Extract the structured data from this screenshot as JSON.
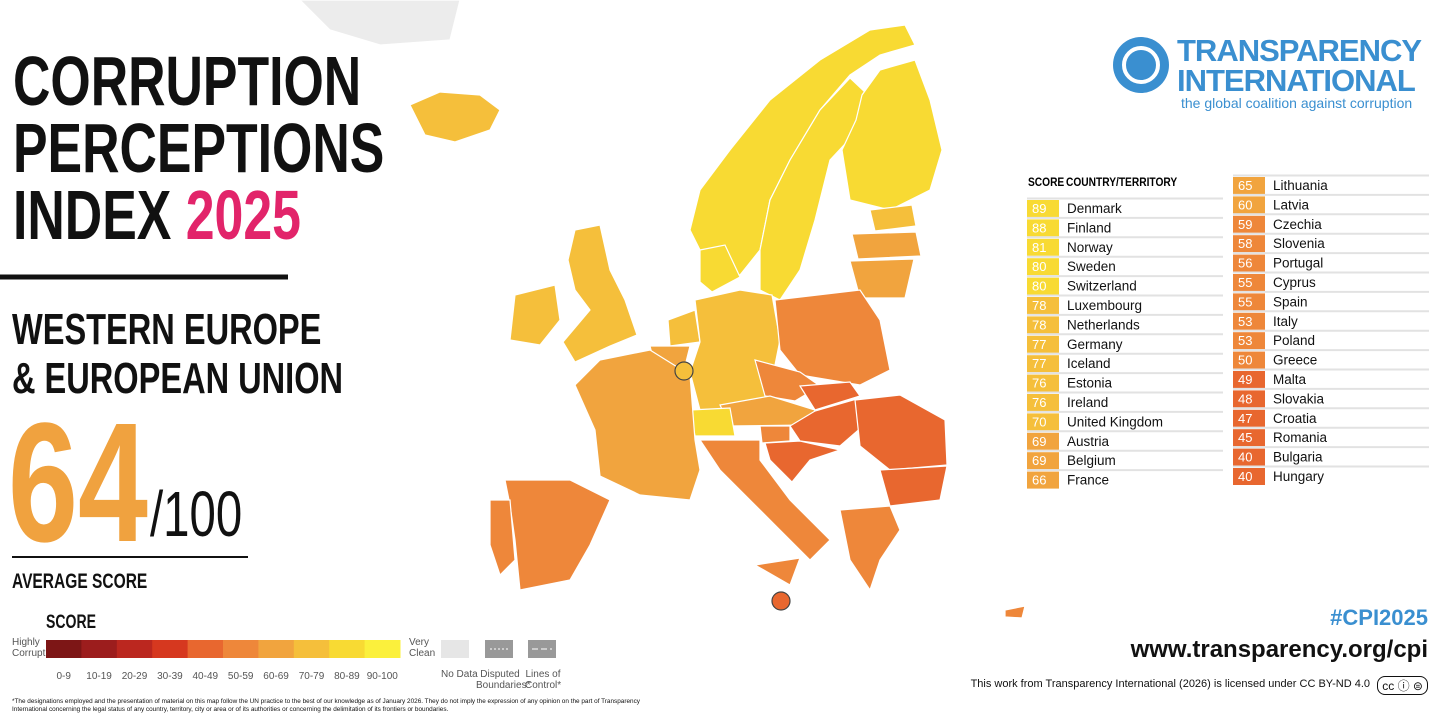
{
  "header": {
    "title_lines": [
      "CORRUPTION",
      "PERCEPTIONS",
      "INDEX"
    ],
    "year": "2025",
    "region_lines": [
      "WESTERN EUROPE",
      "& EUROPEAN UNION"
    ]
  },
  "average": {
    "score": 64,
    "out_of": "/100",
    "label": "AVERAGE SCORE"
  },
  "legend": {
    "title": "SCORE",
    "low_label": "Highly Corrupt",
    "high_label": "Very Clean",
    "bins": [
      "0-9",
      "10-19",
      "20-29",
      "30-39",
      "40-49",
      "50-59",
      "60-69",
      "70-79",
      "80-89",
      "90-100"
    ],
    "colors": [
      "#7d1616",
      "#9c1d1d",
      "#bb271f",
      "#d6381f",
      "#e8672f",
      "#ee873a",
      "#f1a43e",
      "#f5bf3b",
      "#f8da33",
      "#fbf03c"
    ],
    "no_data": "No Data",
    "disputed": "Disputed Boundaries*",
    "lines_of_control": "Lines of Control*"
  },
  "logo": {
    "line1": "TRANSPARENCY",
    "line2": "INTERNATIONAL",
    "tagline": "the global coalition against corruption"
  },
  "table": {
    "header_score": "SCORE",
    "header_country": "COUNTRY/TERRITORY",
    "rows": [
      [
        89,
        "Denmark"
      ],
      [
        88,
        "Finland"
      ],
      [
        81,
        "Norway"
      ],
      [
        80,
        "Sweden"
      ],
      [
        80,
        "Switzerland"
      ],
      [
        78,
        "Luxembourg"
      ],
      [
        78,
        "Netherlands"
      ],
      [
        77,
        "Germany"
      ],
      [
        77,
        "Iceland"
      ],
      [
        76,
        "Estonia"
      ],
      [
        76,
        "Ireland"
      ],
      [
        70,
        "United Kingdom"
      ],
      [
        69,
        "Austria"
      ],
      [
        69,
        "Belgium"
      ],
      [
        66,
        "France"
      ],
      [
        65,
        "Lithuania"
      ],
      [
        60,
        "Latvia"
      ],
      [
        59,
        "Czechia"
      ],
      [
        58,
        "Slovenia"
      ],
      [
        56,
        "Portugal"
      ],
      [
        55,
        "Cyprus"
      ],
      [
        55,
        "Spain"
      ],
      [
        53,
        "Italy"
      ],
      [
        53,
        "Poland"
      ],
      [
        50,
        "Greece"
      ],
      [
        49,
        "Malta"
      ],
      [
        48,
        "Slovakia"
      ],
      [
        47,
        "Croatia"
      ],
      [
        45,
        "Romania"
      ],
      [
        40,
        "Bulgaria"
      ],
      [
        40,
        "Hungary"
      ]
    ]
  },
  "footer": {
    "hashtag": "#CPI2025",
    "url": "www.transparency.org/cpi",
    "license": "This work from Transparency International (2026) is licensed under CC BY-ND 4.0",
    "disclaimer": "*The designations employed and the presentation of material on this map follow the UN practice to the best of our knowledge as of January 2026. They do not imply the expression of any opinion on the part of Transparency International concerning the legal status of any country, territory, city or area or of its authorities or concerning the delimitation of its frontiers or boundaries."
  }
}
